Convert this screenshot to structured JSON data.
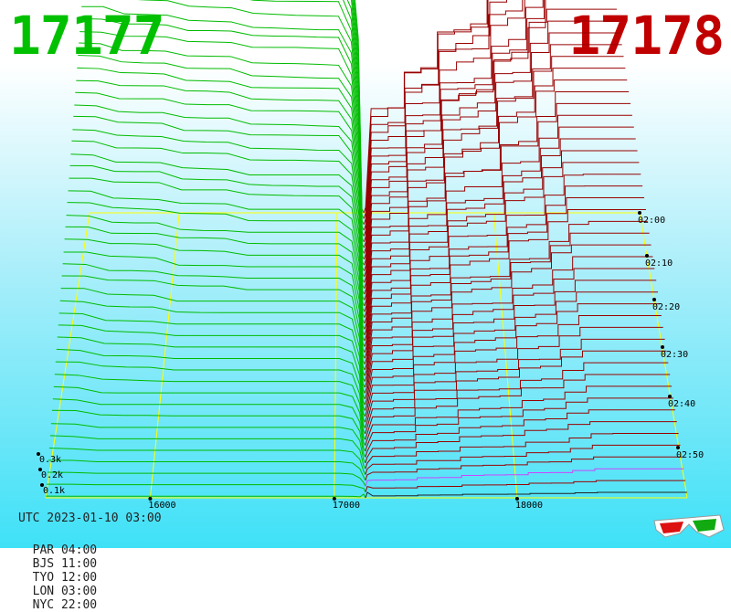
{
  "prices": {
    "bid": "17177",
    "ask": "17178",
    "bid_color": "#00c000",
    "ask_color": "#c00000"
  },
  "chart_data": {
    "type": "3d-depth",
    "x_ticks": [
      "16000",
      "17000",
      "18000"
    ],
    "volume_ticks": [
      "0.3k",
      "0.2k",
      "0.1k"
    ],
    "time_ticks": [
      "02:00",
      "02:10",
      "02:20",
      "02:30",
      "02:40",
      "02:50"
    ],
    "colors": {
      "bid": "#00bb00",
      "ask": "#990000",
      "grid": "#ffff00",
      "latest_ask": "#cc44ff"
    }
  },
  "footer": {
    "utc": "UTC 2023-01-10 03:00",
    "zones": [
      "PAR 04:00",
      "BJS 11:00",
      "TYO 12:00",
      "LON 03:00",
      "NYC 22:00"
    ]
  },
  "icon": "3d-glasses-icon"
}
